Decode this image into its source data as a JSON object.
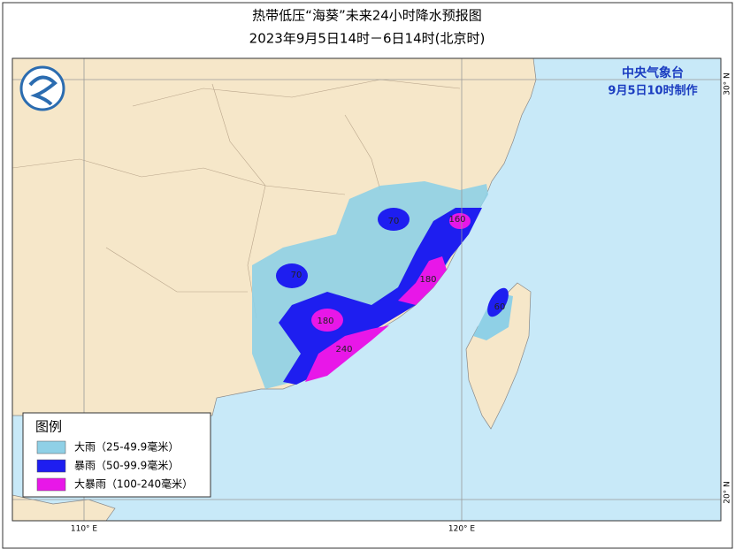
{
  "header": {
    "title": "热带低压“海葵”未来24小时降水预报图",
    "subtitle": "2023年9月5日14时－6日14时(北京时)"
  },
  "credit": {
    "agency": "中央气象台",
    "time": "9月5日10时制作"
  },
  "legend": {
    "title": "图例",
    "items": [
      {
        "label": "大雨（25-49.9毫米）",
        "color": "#8fd0e6"
      },
      {
        "label": "暴雨（50-99.9毫米）",
        "color": "#1e1ef0"
      },
      {
        "label": "大暴雨（100-240毫米）",
        "color": "#e817e8"
      }
    ]
  },
  "contour_labels": [
    "70",
    "70",
    "160",
    "180",
    "180",
    "240",
    "60"
  ],
  "graticule": {
    "lon": [
      "110° E",
      "120° E"
    ],
    "lat": [
      "30° N",
      "20° N"
    ]
  }
}
